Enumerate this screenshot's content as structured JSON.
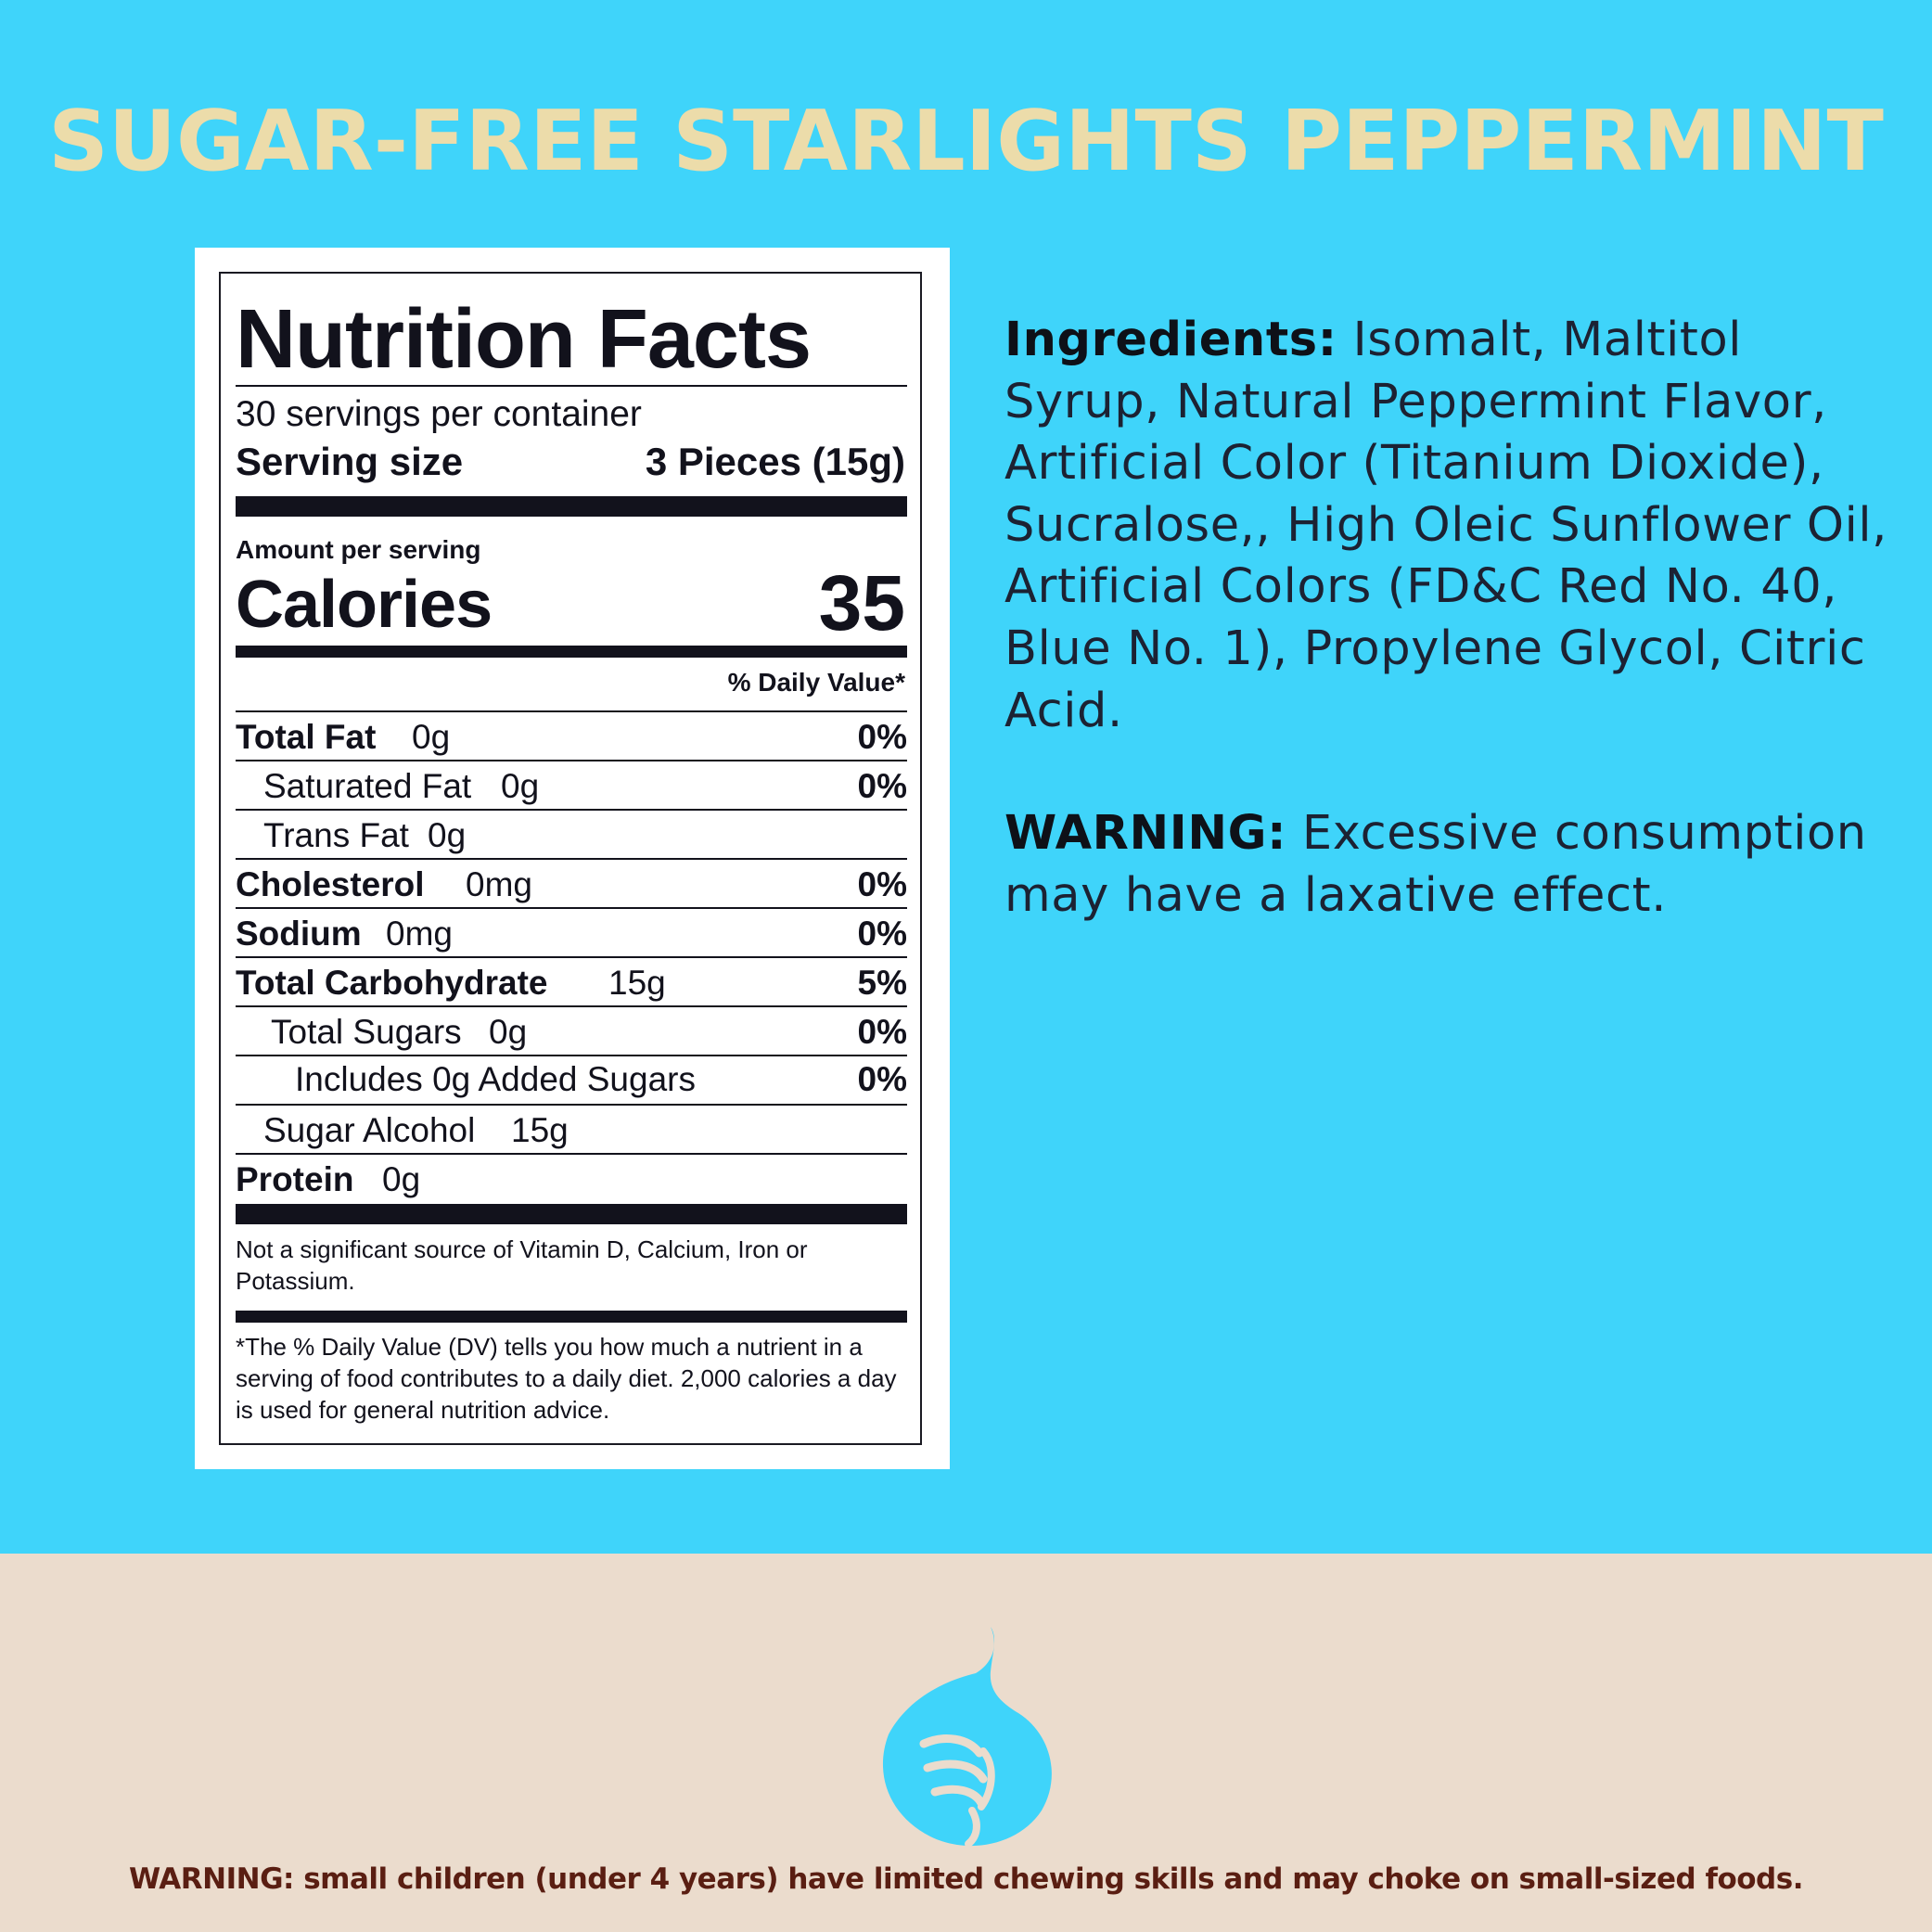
{
  "page_title": "SUGAR-FREE STARLIGHTS PEPPERMINT",
  "nutrition": {
    "title": "Nutrition Facts",
    "servings_per_container": "30 servings per container",
    "serving_size_label": "Serving size",
    "serving_size_value": "3 Pieces (15g)",
    "amount_per_serving": "Amount per serving",
    "calories_label": "Calories",
    "calories_value": "35",
    "daily_value_header": "% Daily Value*",
    "rows": [
      {
        "name": "Total Fat",
        "amount": "0g",
        "percent": "0%"
      },
      {
        "name": "Saturated Fat",
        "amount": "0g",
        "percent": "0%"
      },
      {
        "name": "Trans Fat",
        "amount": "0g",
        "percent": ""
      },
      {
        "name": "Cholesterol",
        "amount": "0mg",
        "percent": "0%"
      },
      {
        "name": "Sodium",
        "amount": "0mg",
        "percent": "0%"
      },
      {
        "name": "Total Carbohydrate",
        "amount": "15g",
        "percent": "5%"
      },
      {
        "name": "Total Sugars",
        "amount": "0g",
        "percent": "0%"
      },
      {
        "name": "Includes 0g Added Sugars",
        "amount": "",
        "percent": "0%"
      },
      {
        "name": "Sugar Alcohol",
        "amount": "15g",
        "percent": ""
      },
      {
        "name": "Protein",
        "amount": "0g",
        "percent": ""
      }
    ],
    "footnote_vitamins": "Not a significant source of Vitamin D, Calcium, Iron or Potassium.",
    "footnote_dv": "*The % Daily Value (DV) tells you how much a nutrient in a serving of food contributes to a daily diet. 2,000 calories a day is used for general nutrition advice."
  },
  "ingredients": {
    "label": "Ingredients:",
    "text": "Isomalt, Maltitol Syrup, Natural Peppermint Flavor, Artificial Color (Titanium Dioxide), Sucralose,, High Oleic Sunflower Oil, Artificial Colors (FD&C Red No. 40, Blue No. 1), Propylene Glycol, Citric Acid."
  },
  "warning": {
    "label": "WARNING:",
    "text": "Excessive consumption may have a laxative effect."
  },
  "bottom_warning": "WARNING: small children (under 4 years) have limited chewing skills and may choke on small-sized foods.",
  "mascot_icon": "swirl-mint-icon",
  "colors": {
    "top_background": "#3fd4fa",
    "bottom_background": "#ebdccd",
    "title": "#ecdcaa",
    "bottom_warning": "#5a1e12"
  }
}
